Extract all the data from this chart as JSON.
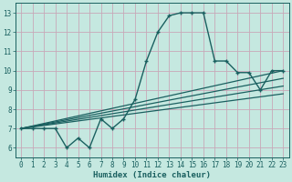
{
  "xlabel": "Humidex (Indice chaleur)",
  "bg_color": "#c5e8e0",
  "grid_color": "#c8a8b8",
  "line_color": "#1a6060",
  "xlim": [
    -0.5,
    23.5
  ],
  "ylim": [
    5.5,
    13.5
  ],
  "xticks": [
    0,
    1,
    2,
    3,
    4,
    5,
    6,
    7,
    8,
    9,
    10,
    11,
    12,
    13,
    14,
    15,
    16,
    17,
    18,
    19,
    20,
    21,
    22,
    23
  ],
  "yticks": [
    6,
    7,
    8,
    9,
    10,
    11,
    12,
    13
  ],
  "main_x": [
    0,
    1,
    2,
    3,
    4,
    5,
    6,
    7,
    8,
    9,
    10,
    11,
    12,
    13,
    14,
    15,
    16,
    17,
    18,
    19,
    20,
    21,
    22,
    23
  ],
  "main_y": [
    7.0,
    7.0,
    7.0,
    7.0,
    6.0,
    6.5,
    6.0,
    7.5,
    7.0,
    7.5,
    8.5,
    10.5,
    12.0,
    12.85,
    13.0,
    13.0,
    13.0,
    10.5,
    10.5,
    9.9,
    9.9,
    9.0,
    10.0,
    10.0
  ],
  "trend_lines": [
    {
      "x0": 0,
      "y0": 7.0,
      "x1": 23,
      "y1": 10.0
    },
    {
      "x0": 0,
      "y0": 7.0,
      "x1": 23,
      "y1": 9.6
    },
    {
      "x0": 0,
      "y0": 7.0,
      "x1": 23,
      "y1": 9.2
    },
    {
      "x0": 0,
      "y0": 7.0,
      "x1": 23,
      "y1": 8.8
    }
  ]
}
